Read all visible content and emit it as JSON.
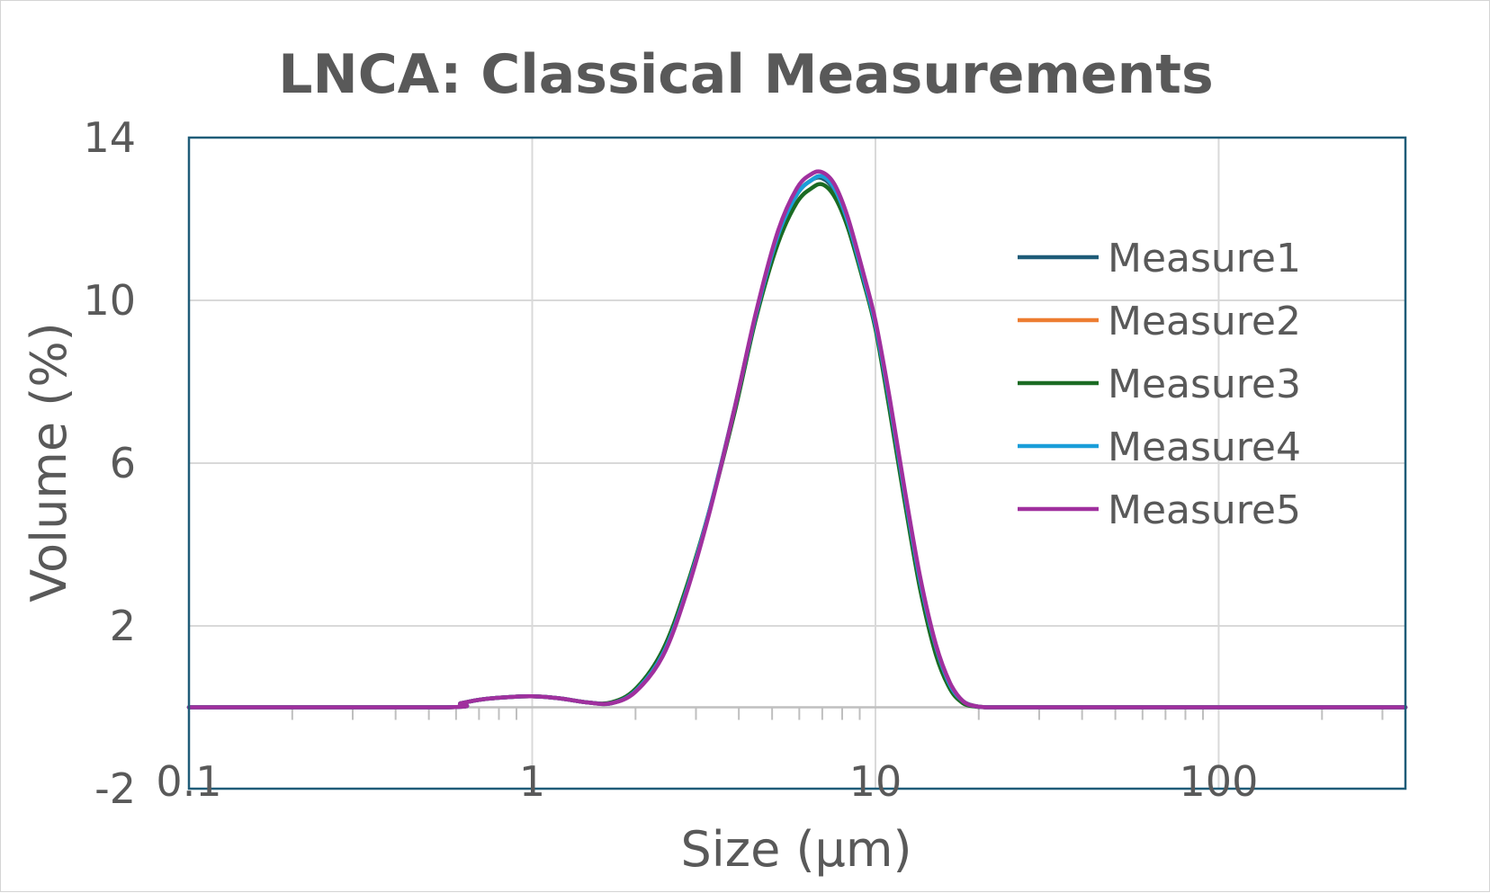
{
  "chart_data": {
    "type": "line",
    "title": "LNCA: Classical Measurements",
    "xlabel": "Size (µm)",
    "ylabel": "Volume (%)",
    "x_scale": "log",
    "xlim": [
      0.1,
      350
    ],
    "ylim": [
      -2,
      14
    ],
    "x_ticks": [
      {
        "value": 0.1,
        "label": "0.1"
      },
      {
        "value": 1,
        "label": "1"
      },
      {
        "value": 10,
        "label": "10"
      },
      {
        "value": 100,
        "label": "100"
      }
    ],
    "y_ticks": [
      {
        "value": -2,
        "label": "-2"
      },
      {
        "value": 2,
        "label": "2"
      },
      {
        "value": 6,
        "label": "6"
      },
      {
        "value": 10,
        "label": "10"
      },
      {
        "value": 14,
        "label": "14"
      }
    ],
    "gridlines": [
      2,
      6,
      10,
      14
    ],
    "grid": true,
    "legend_position": "right",
    "x": [
      0.1,
      0.55,
      0.62,
      0.72,
      0.85,
      1.0,
      1.2,
      1.45,
      1.7,
      2.0,
      2.4,
      2.8,
      3.3,
      3.9,
      4.5,
      5.2,
      5.9,
      6.5,
      7.0,
      7.6,
      8.3,
      9.2,
      10.0,
      11.0,
      12.2,
      13.5,
      15.0,
      16.5,
      18.0,
      19.5,
      21.0,
      22.0,
      25.0,
      50.0,
      100.0,
      200.0,
      350.0
    ],
    "series": [
      {
        "name": "Measure1",
        "color": "#1f5c78",
        "values": [
          0,
          0,
          0.1,
          0.2,
          0.25,
          0.27,
          0.22,
          0.12,
          0.1,
          0.4,
          1.3,
          2.8,
          4.9,
          7.4,
          9.7,
          11.6,
          12.6,
          12.95,
          13.0,
          12.7,
          11.9,
          10.6,
          9.4,
          7.5,
          5.2,
          3.1,
          1.5,
          0.55,
          0.15,
          0.03,
          0,
          0,
          0,
          0,
          0,
          0,
          0
        ]
      },
      {
        "name": "Measure2",
        "color": "#ed7d31",
        "values": [
          0,
          0,
          0.1,
          0.2,
          0.25,
          0.27,
          0.22,
          0.12,
          0.1,
          0.4,
          1.3,
          2.8,
          4.9,
          7.4,
          9.7,
          11.6,
          12.6,
          12.95,
          13.05,
          12.75,
          11.95,
          10.6,
          9.4,
          7.5,
          5.2,
          3.1,
          1.5,
          0.55,
          0.15,
          0.03,
          0,
          0,
          0,
          0,
          0,
          0,
          0
        ]
      },
      {
        "name": "Measure3",
        "color": "#1b6b23",
        "values": [
          0,
          0,
          0.1,
          0.2,
          0.25,
          0.27,
          0.22,
          0.12,
          0.12,
          0.45,
          1.4,
          2.9,
          4.9,
          7.3,
          9.6,
          11.4,
          12.4,
          12.75,
          12.85,
          12.55,
          11.8,
          10.5,
          9.3,
          7.3,
          5.0,
          2.9,
          1.3,
          0.45,
          0.1,
          0.02,
          0,
          0,
          0,
          0,
          0,
          0,
          0
        ]
      },
      {
        "name": "Measure4",
        "color": "#1a9ed9",
        "values": [
          0,
          0,
          0.1,
          0.2,
          0.25,
          0.27,
          0.22,
          0.12,
          0.1,
          0.4,
          1.3,
          2.8,
          4.9,
          7.4,
          9.7,
          11.6,
          12.6,
          12.95,
          13.05,
          12.75,
          11.95,
          10.6,
          9.4,
          7.5,
          5.2,
          3.1,
          1.5,
          0.55,
          0.15,
          0.03,
          0,
          0,
          0,
          0,
          0,
          0,
          0
        ]
      },
      {
        "name": "Measure5",
        "color": "#a0309e",
        "values": [
          0,
          0,
          0.1,
          0.2,
          0.25,
          0.27,
          0.22,
          0.12,
          0.1,
          0.38,
          1.25,
          2.75,
          4.85,
          7.4,
          9.75,
          11.7,
          12.75,
          13.1,
          13.15,
          12.85,
          12.05,
          10.7,
          9.5,
          7.6,
          5.3,
          3.2,
          1.55,
          0.6,
          0.15,
          0.03,
          0,
          0,
          0,
          0,
          0,
          0,
          0
        ]
      }
    ]
  }
}
